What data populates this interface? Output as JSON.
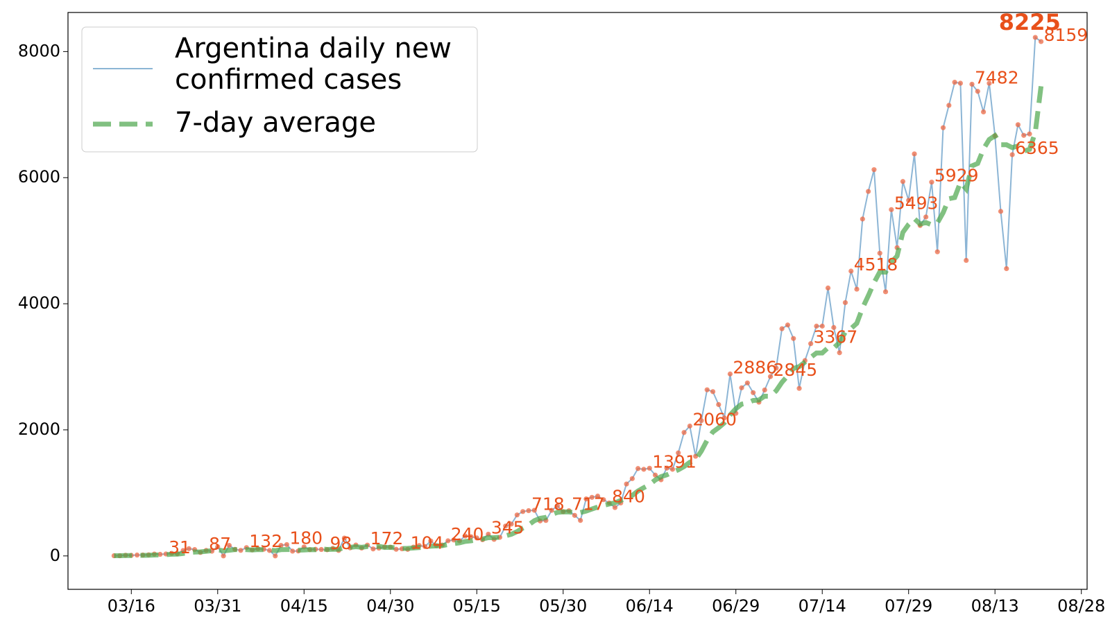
{
  "chart_data": {
    "type": "line",
    "x": [
      "03/13",
      "03/14",
      "03/15",
      "03/16",
      "03/17",
      "03/18",
      "03/19",
      "03/20",
      "03/21",
      "03/22",
      "03/23",
      "03/24",
      "03/25",
      "03/26",
      "03/27",
      "03/28",
      "03/29",
      "03/30",
      "03/31",
      "04/01",
      "04/02",
      "04/03",
      "04/04",
      "04/05",
      "04/06",
      "04/07",
      "04/08",
      "04/09",
      "04/10",
      "04/11",
      "04/12",
      "04/13",
      "04/14",
      "04/15",
      "04/16",
      "04/17",
      "04/18",
      "04/19",
      "04/20",
      "04/21",
      "04/22",
      "04/23",
      "04/24",
      "04/25",
      "04/26",
      "04/27",
      "04/28",
      "04/29",
      "04/30",
      "05/01",
      "05/02",
      "05/03",
      "05/04",
      "05/05",
      "05/06",
      "05/07",
      "05/08",
      "05/09",
      "05/10",
      "05/11",
      "05/12",
      "05/13",
      "05/14",
      "05/15",
      "05/16",
      "05/17",
      "05/18",
      "05/19",
      "05/20",
      "05/21",
      "05/22",
      "05/23",
      "05/24",
      "05/25",
      "05/26",
      "05/27",
      "05/28",
      "05/29",
      "05/30",
      "05/31",
      "06/01",
      "06/02",
      "06/03",
      "06/04",
      "06/05",
      "06/06",
      "06/07",
      "06/08",
      "06/09",
      "06/10",
      "06/11",
      "06/12",
      "06/13",
      "06/14",
      "06/15",
      "06/16",
      "06/17",
      "06/18",
      "06/19",
      "06/20",
      "06/21",
      "06/22",
      "06/23",
      "06/24",
      "06/25",
      "06/26",
      "06/27",
      "06/28",
      "06/29",
      "06/30",
      "07/01",
      "07/02",
      "07/03",
      "07/04",
      "07/05",
      "07/06",
      "07/07",
      "07/08",
      "07/09",
      "07/10",
      "07/11",
      "07/12",
      "07/13",
      "07/14",
      "07/15",
      "07/16",
      "07/17",
      "07/18",
      "07/19",
      "07/20",
      "07/21",
      "07/22",
      "07/23",
      "07/24",
      "07/25",
      "07/26",
      "07/27",
      "07/28",
      "07/29",
      "07/30",
      "07/31",
      "08/01",
      "08/02",
      "08/03",
      "08/04",
      "08/05",
      "08/06",
      "08/07",
      "08/08",
      "08/09",
      "08/10",
      "08/11",
      "08/12",
      "08/13",
      "08/14",
      "08/15",
      "08/16",
      "08/17",
      "08/18",
      "08/19",
      "08/20",
      "08/21"
    ],
    "series": [
      {
        "name": "Argentina daily new\nconfirmed cases",
        "color": "#7fadd0",
        "marker_color": "#ec6a46",
        "values": [
          3,
          3,
          11,
          9,
          14,
          14,
          18,
          30,
          25,
          31,
          41,
          35,
          86,
          115,
          101,
          55,
          87,
          75,
          146,
          0,
          167,
          104,
          88,
          132,
          96,
          114,
          107,
          86,
          0,
          167,
          180,
          76,
          78,
          143,
          100,
          105,
          102,
          98,
          120,
          87,
          283,
          128,
          173,
          125,
          172,
          111,
          124,
          144,
          139,
          105,
          113,
          104,
          140,
          164,
          150,
          238,
          163,
          173,
          240,
          253,
          240,
          316,
          305,
          285,
          257,
          345,
          263,
          295,
          474,
          505,
          650,
          704,
          718,
          724,
          555,
          562,
          723,
          795,
          702,
          717,
          643,
          563,
          904,
          929,
          949,
          892,
          840,
          767,
          840,
          1141,
          1226,
          1386,
          1374,
          1391,
          1282,
          1208,
          1393,
          1374,
          1634,
          1958,
          2060,
          1581,
          2146,
          2635,
          2606,
          2401,
          2189,
          2886,
          2262,
          2667,
          2744,
          2590,
          2439,
          2632,
          2845,
          2979,
          3604,
          3663,
          3449,
          2657,
          3099,
          3367,
          3645,
          3645,
          4250,
          3623,
          3223,
          4018,
          4518,
          4231,
          5344,
          5782,
          6127,
          4802,
          4190,
          5493,
          4890,
          5939,
          5641,
          6377,
          5241,
          5376,
          5929,
          4824,
          6792,
          7147,
          7513,
          7498,
          4688,
          7482,
          7369,
          7043,
          7498,
          6663,
          5465,
          4557,
          6365,
          6840,
          6671,
          6693,
          8225,
          8159
        ],
        "value_labels": [
          null,
          null,
          null,
          null,
          null,
          null,
          null,
          null,
          null,
          "31",
          null,
          null,
          null,
          null,
          null,
          null,
          "87",
          null,
          null,
          null,
          null,
          null,
          null,
          "132",
          null,
          null,
          null,
          null,
          null,
          null,
          "180",
          null,
          null,
          null,
          null,
          null,
          null,
          "98",
          null,
          null,
          null,
          null,
          null,
          null,
          "172",
          null,
          null,
          null,
          null,
          null,
          null,
          "104",
          null,
          null,
          null,
          null,
          null,
          null,
          "240",
          null,
          null,
          null,
          null,
          null,
          null,
          "345",
          null,
          null,
          null,
          null,
          null,
          null,
          "718",
          null,
          null,
          null,
          null,
          null,
          null,
          "717",
          null,
          null,
          null,
          null,
          null,
          null,
          "840",
          null,
          null,
          null,
          null,
          null,
          null,
          "1391",
          null,
          null,
          null,
          null,
          null,
          null,
          "2060",
          null,
          null,
          null,
          null,
          null,
          null,
          "2886",
          null,
          null,
          null,
          null,
          null,
          null,
          "2845",
          null,
          null,
          null,
          null,
          null,
          null,
          "3367",
          null,
          null,
          null,
          null,
          null,
          null,
          "4518",
          null,
          null,
          null,
          null,
          null,
          null,
          "5493",
          null,
          null,
          null,
          null,
          null,
          null,
          "5929",
          null,
          null,
          null,
          null,
          null,
          null,
          "7482",
          null,
          null,
          null,
          null,
          null,
          null,
          "6365",
          null,
          null,
          null,
          "8225",
          "8159"
        ]
      },
      {
        "name": "7-day average",
        "color": "#4ca64c",
        "dashed": true,
        "values": [
          3,
          3,
          6,
          7,
          8,
          9,
          10,
          14,
          17,
          20,
          26,
          29,
          39,
          52,
          61,
          64,
          74,
          84,
          98,
          80,
          90,
          100,
          103,
          99,
          94,
          101,
          100,
          95,
          84,
          99,
          101,
          100,
          91,
          95,
          99,
          98,
          113,
          102,
          105,
          106,
          133,
          136,
          146,
          138,
          149,
          148,
          153,
          134,
          136,
          127,
          118,
          120,
          125,
          132,
          138,
          155,
          158,
          163,
          180,
          196,
          208,
          230,
          240,
          257,
          269,
          289,
          290,
          296,
          319,
          343,
          386,
          443,
          493,
          559,
          597,
          612,
          657,
          691,
          698,
          697,
          686,
          687,
          712,
          743,
          775,
          802,
          823,
          842,
          880,
          914,
          960,
          1030,
          1082,
          1131,
          1204,
          1257,
          1286,
          1327,
          1366,
          1418,
          1485,
          1528,
          1662,
          1834,
          1967,
          2034,
          2110,
          2236,
          2335,
          2407,
          2425,
          2466,
          2472,
          2534,
          2533,
          2620,
          2754,
          2857,
          2973,
          3004,
          3075,
          3149,
          3219,
          3219,
          3302,
          3298,
          3386,
          3550,
          3606,
          3690,
          3933,
          4128,
          4335,
          4505,
          4501,
          4657,
          4757,
          5132,
          5258,
          5350,
          5264,
          5289,
          5253,
          5282,
          5445,
          5666,
          5685,
          5925,
          5820,
          6186,
          6226,
          6455,
          6605,
          6667,
          6522,
          6522,
          6477,
          6502,
          6420,
          6448,
          6718,
          7450
        ]
      }
    ],
    "xlim": [
      "03/05",
      "08/29"
    ],
    "xticks": [
      "03/16",
      "03/31",
      "04/15",
      "04/30",
      "05/15",
      "05/30",
      "06/14",
      "06/29",
      "07/14",
      "07/29",
      "08/13",
      "08/28"
    ],
    "ylim": [
      -530,
      8620
    ],
    "yticks": [
      0,
      2000,
      4000,
      6000,
      8000
    ],
    "legend": "upper left"
  }
}
